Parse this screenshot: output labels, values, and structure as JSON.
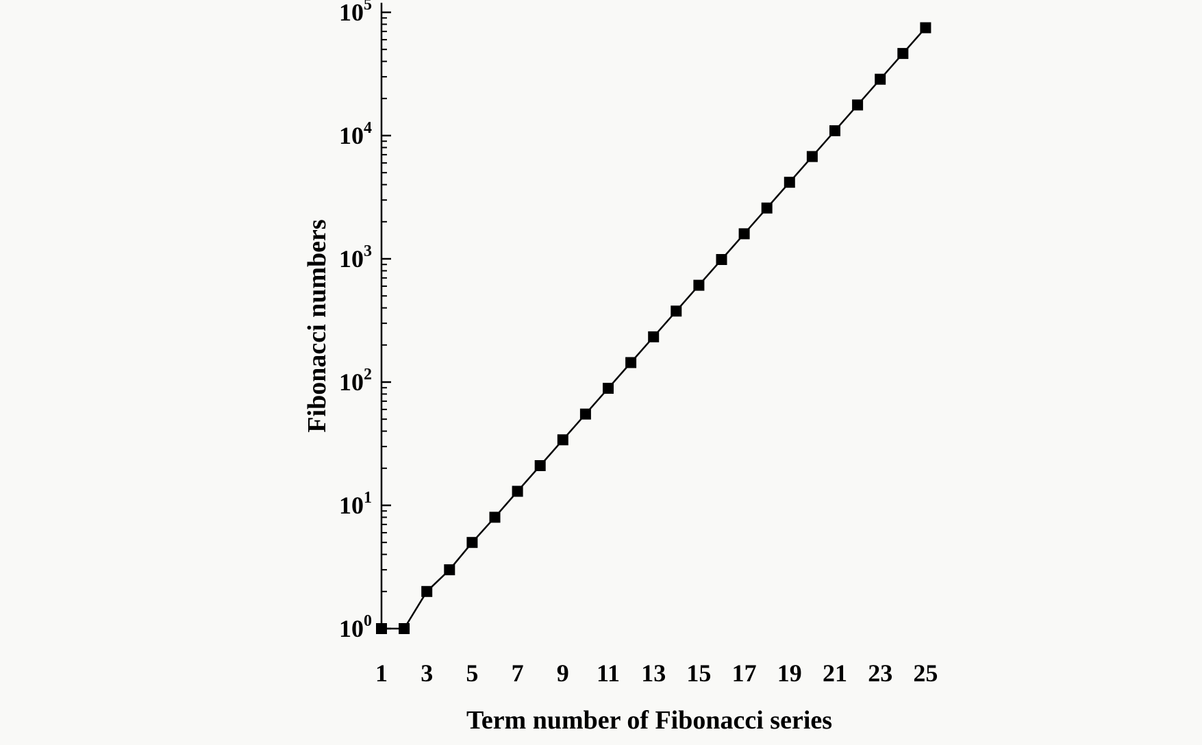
{
  "chart_data": {
    "type": "line",
    "title": "",
    "xlabel": "Term number of Fibonacci series",
    "ylabel": "Fibonacci numbers",
    "x": [
      1,
      2,
      3,
      4,
      5,
      6,
      7,
      8,
      9,
      10,
      11,
      12,
      13,
      14,
      15,
      16,
      17,
      18,
      19,
      20,
      21,
      22,
      23,
      24,
      25
    ],
    "series": [
      {
        "values": [
          1,
          1,
          2,
          3,
          5,
          8,
          13,
          21,
          34,
          55,
          89,
          144,
          233,
          377,
          610,
          987,
          1597,
          2584,
          4181,
          6765,
          10946,
          17711,
          28657,
          46368,
          75025
        ],
        "marker": "square",
        "color": "#000000"
      }
    ],
    "x_ticks": [
      1,
      3,
      5,
      7,
      9,
      11,
      13,
      15,
      17,
      19,
      21,
      23,
      25
    ],
    "y_scale": "log",
    "ylim": [
      1,
      100000
    ],
    "y_tick_exponents": [
      0,
      1,
      2,
      3,
      4,
      5
    ],
    "y_tick_base": "10",
    "grid": false,
    "legend": "none"
  }
}
